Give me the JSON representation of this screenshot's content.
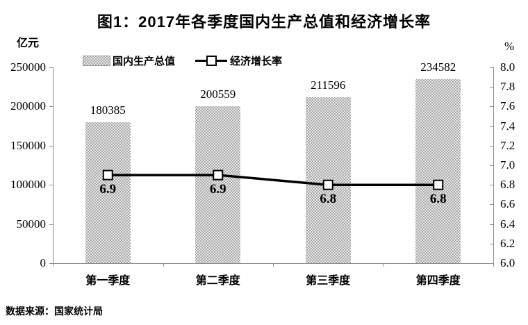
{
  "title": "图1：2017年各季度国内生产总值和经济增长率",
  "left_axis_unit": "亿元",
  "right_axis_unit": "%",
  "legend": {
    "bar_label": "国内生产总值",
    "line_label": "经济增长率"
  },
  "source": "数据来源：国家统计局",
  "colors": {
    "bar_fill": "#a8a8a8",
    "bar_dot": "#ffffff",
    "axis": "#8a8a8a",
    "line": "#000000",
    "marker_fill": "#ffffff",
    "marker_border": "#000000",
    "text": "#000000"
  },
  "chart_data": {
    "type": "combo",
    "title": "图1：2017年各季度国内生产总值和经济增长率",
    "categories": [
      "第一季度",
      "第二季度",
      "第三季度",
      "第四季度"
    ],
    "series": [
      {
        "name": "国内生产总值",
        "type": "bar",
        "axis": "left",
        "values": [
          180385,
          200559,
          211596,
          234582
        ]
      },
      {
        "name": "经济增长率",
        "type": "line",
        "axis": "right",
        "values": [
          6.9,
          6.9,
          6.8,
          6.8
        ]
      }
    ],
    "left_axis": {
      "label": "亿元",
      "min": 0,
      "max": 250000,
      "step": 50000
    },
    "right_axis": {
      "label": "%",
      "min": 6.0,
      "max": 8.0,
      "step": 0.2
    },
    "grid": false,
    "legend_position": "top",
    "data_labels": true
  }
}
